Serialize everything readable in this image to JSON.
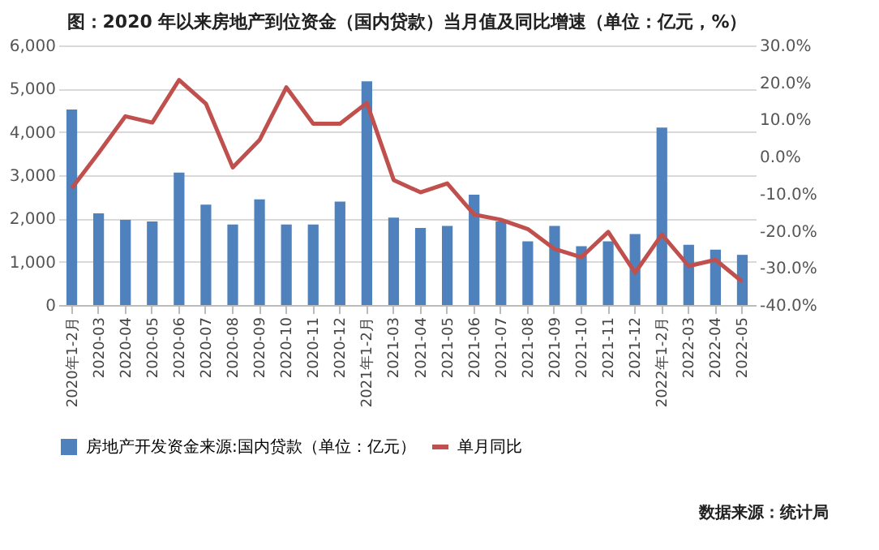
{
  "chart_data": {
    "type": "bar",
    "title": "图：2020 年以来房地产到位资金（国内贷款）当月值及同比增速（单位：亿元，%）",
    "annotations": [
      "数据来源：统计局"
    ],
    "categories": [
      "2020年1-2月",
      "2020-03",
      "2020-04",
      "2020-05",
      "2020-06",
      "2020-07",
      "2020-08",
      "2020-09",
      "2020-10",
      "2020-11",
      "2020-12",
      "2021年1-2月",
      "2021-03",
      "2021-04",
      "2021-05",
      "2021-06",
      "2021-07",
      "2021-08",
      "2021-09",
      "2021-10",
      "2021-11",
      "2021-12",
      "2022年1-2月",
      "2022-03",
      "2022-04",
      "2022-05"
    ],
    "series": [
      {
        "name": "房地产开发资金来源:国内贷款（单位：亿元）",
        "color": "#4f81bd",
        "values": [
          4520,
          2120,
          1970,
          1930,
          3060,
          2320,
          1860,
          2440,
          1860,
          1860,
          2390,
          5170,
          2020,
          1780,
          1830,
          2550,
          1930,
          1470,
          1830,
          1360,
          1470,
          1640,
          4100,
          1390,
          1280,
          1160
        ]
      },
      {
        "name": "单月同比",
        "type": "line",
        "axis": "y2",
        "color": "#c0504d",
        "values": [
          -8.5,
          1.0,
          10.9,
          9.2,
          20.7,
          14.3,
          -2.9,
          4.5,
          18.7,
          8.9,
          8.9,
          14.5,
          -6.3,
          -9.6,
          -7.2,
          -15.6,
          -17.0,
          -19.5,
          -24.9,
          -27.1,
          -20.3,
          -31.3,
          -21.0,
          -29.5,
          -27.8,
          -33.7
        ]
      }
    ],
    "ylim": [
      0,
      6000
    ],
    "yticks": [
      0,
      {
        "value": 1000,
        "label": "1,000"
      },
      {
        "value": 2000,
        "label": "2,000"
      },
      {
        "value": 3000,
        "label": "3,000"
      },
      {
        "value": 4000,
        "label": "4,000"
      },
      {
        "value": 5000,
        "label": "5,000"
      },
      {
        "value": 6000,
        "label": "6,000"
      }
    ],
    "y2lim": [
      -40,
      30
    ],
    "y2ticks": [
      {
        "value": -40,
        "label": "-40.0%"
      },
      {
        "value": -30,
        "label": "-30.0%"
      },
      {
        "value": -20,
        "label": "-20.0%"
      },
      {
        "value": -10,
        "label": "-10.0%"
      },
      {
        "value": 0,
        "label": "0.0%"
      },
      {
        "value": 10,
        "label": "10.0%"
      },
      {
        "value": 20,
        "label": "20.0%"
      },
      {
        "value": 30,
        "label": "30.0%"
      }
    ],
    "grid": "y",
    "legend": "bottom"
  }
}
